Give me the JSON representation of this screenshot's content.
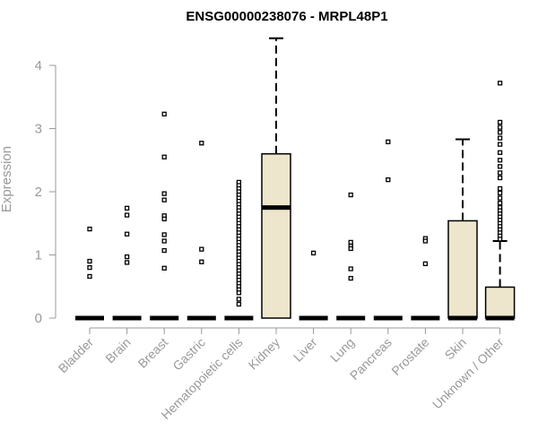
{
  "chart_data": {
    "type": "boxplot",
    "title": "ENSG00000238076 - MRPL48P1",
    "ylabel": "Expression",
    "xlabel": "",
    "ylim": [
      0,
      4.45
    ],
    "yticks": [
      0,
      1,
      2,
      3,
      4
    ],
    "box_fill": "#ede6cc",
    "stroke_color": "#000000",
    "axis_color": "#999999",
    "categories": [
      "Bladder",
      "Brain",
      "Breast",
      "Gastric",
      "Hematopoietic cells",
      "Kidney",
      "Liver",
      "Lung",
      "Pancreas",
      "Prostate",
      "Skin",
      "Unknown / Other"
    ],
    "boxes": [
      {
        "category": "Bladder",
        "q1": 0,
        "median": 0,
        "q3": 0,
        "whisker_low": 0,
        "whisker_high": 0,
        "outliers": [
          1.41,
          0.9,
          0.8,
          0.66
        ]
      },
      {
        "category": "Brain",
        "q1": 0,
        "median": 0,
        "q3": 0,
        "whisker_low": 0,
        "whisker_high": 0,
        "outliers": [
          1.74,
          1.63,
          1.33,
          0.97,
          0.88
        ]
      },
      {
        "category": "Breast",
        "q1": 0,
        "median": 0,
        "q3": 0,
        "whisker_low": 0,
        "whisker_high": 0,
        "outliers": [
          3.23,
          2.55,
          1.97,
          1.87,
          1.62,
          1.57,
          1.32,
          1.22,
          1.07,
          0.79
        ]
      },
      {
        "category": "Gastric",
        "q1": 0,
        "median": 0,
        "q3": 0,
        "whisker_low": 0,
        "whisker_high": 0,
        "outliers": [
          2.77,
          1.09,
          0.89
        ]
      },
      {
        "category": "Hematopoietic cells",
        "q1": 0,
        "median": 0,
        "q3": 0,
        "whisker_low": 0,
        "whisker_high": 0,
        "outliers": [
          2.15,
          2.1,
          2.05,
          2.0,
          1.95,
          1.9,
          1.85,
          1.8,
          1.75,
          1.7,
          1.65,
          1.6,
          1.55,
          1.5,
          1.45,
          1.4,
          1.35,
          1.3,
          1.25,
          1.2,
          1.15,
          1.1,
          1.05,
          1.0,
          0.95,
          0.9,
          0.85,
          0.8,
          0.75,
          0.7,
          0.65,
          0.6,
          0.55,
          0.5,
          0.45,
          0.4,
          0.3,
          0.22
        ]
      },
      {
        "category": "Kidney",
        "q1": 0,
        "median": 1.75,
        "q3": 2.6,
        "whisker_low": 0,
        "whisker_high": 4.43,
        "outliers": []
      },
      {
        "category": "Liver",
        "q1": 0,
        "median": 0,
        "q3": 0,
        "whisker_low": 0,
        "whisker_high": 0,
        "outliers": [
          1.03
        ]
      },
      {
        "category": "Lung",
        "q1": 0,
        "median": 0,
        "q3": 0,
        "whisker_low": 0,
        "whisker_high": 0,
        "outliers": [
          1.95,
          1.2,
          1.14,
          1.1,
          0.78,
          0.63
        ]
      },
      {
        "category": "Pancreas",
        "q1": 0,
        "median": 0,
        "q3": 0,
        "whisker_low": 0,
        "whisker_high": 0,
        "outliers": [
          2.79,
          2.19
        ]
      },
      {
        "category": "Prostate",
        "q1": 0,
        "median": 0,
        "q3": 0,
        "whisker_low": 0,
        "whisker_high": 0,
        "outliers": [
          1.26,
          1.22,
          0.86
        ]
      },
      {
        "category": "Skin",
        "q1": 0,
        "median": 0,
        "q3": 1.54,
        "whisker_low": 0,
        "whisker_high": 2.83,
        "outliers": []
      },
      {
        "category": "Unknown / Other",
        "q1": 0,
        "median": 0,
        "q3": 0.49,
        "whisker_low": 0,
        "whisker_high": 1.22,
        "outliers": [
          3.72,
          3.1,
          3.02,
          2.94,
          2.85,
          2.75,
          2.62,
          2.5,
          2.4,
          2.3,
          2.22,
          2.05,
          1.98,
          1.9,
          1.82,
          1.75,
          1.7,
          1.65,
          1.6,
          1.55,
          1.5,
          1.45,
          1.4,
          1.35,
          1.3,
          1.25
        ]
      }
    ]
  }
}
